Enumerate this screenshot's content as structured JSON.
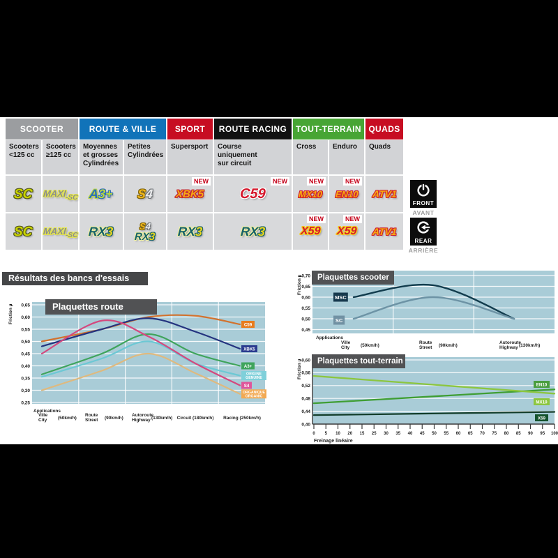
{
  "page": {
    "results_title": "Résultats des bancs d'essais"
  },
  "table": {
    "new_label": "NEW",
    "groups": [
      {
        "label": "SCOOTER",
        "color": "#9b9da0"
      },
      {
        "label": "ROUTE & VILLE",
        "color": "#1173b9"
      },
      {
        "label": "SPORT",
        "color": "#c70d22"
      },
      {
        "label": "ROUTE RACING",
        "color": "#121212"
      },
      {
        "label": "TOUT-TERRAIN",
        "color": "#47a534"
      },
      {
        "label": "QUADS",
        "color": "#c70d22"
      }
    ],
    "subheaders": [
      [
        "Scooters",
        "<125 cc"
      ],
      [
        "Scooters",
        "≥125 cc"
      ],
      [
        "Moyennes",
        "et grosses",
        "Cylindrées"
      ],
      [
        "Petites",
        "Cylindrées"
      ],
      [
        "Supersport"
      ],
      [
        "Course",
        "uniquement",
        "sur circuit"
      ],
      [
        "Cross"
      ],
      [
        "Enduro"
      ],
      [
        "Quads"
      ]
    ],
    "badges": {
      "SC": {
        "fs": 19,
        "parts": [
          {
            "t": "SC",
            "c": "#c9d300",
            "sh": "#55591f"
          }
        ]
      },
      "MAXISC": {
        "fs": 13,
        "parts": [
          {
            "t": "MAXI",
            "c": "#8a8d90",
            "sh": "#e6e74b"
          },
          {
            "t": "-SC",
            "c": "#8a8d90",
            "sh": "#e6e74b",
            "fs": 10,
            "dy": 4
          }
        ]
      },
      "A3": {
        "fs": 18,
        "parts": [
          {
            "t": "A",
            "c": "#2a6db8",
            "sh": "#b9d641"
          },
          {
            "t": "3+",
            "c": "#b9d641",
            "sh": "#2a6db8"
          }
        ]
      },
      "S4": {
        "fs": 18,
        "parts": [
          {
            "t": "S",
            "c": "#f2b719",
            "sh": "#7d6410"
          },
          {
            "t": "4",
            "c": "#e9eaeb",
            "sh": "#707478"
          }
        ]
      },
      "XBK5": {
        "fs": 15,
        "parts": [
          {
            "t": "XBK5",
            "c": "#f7a813",
            "sh": "#c22435"
          }
        ]
      },
      "C59": {
        "fs": 20,
        "parts": [
          {
            "t": "C59",
            "c": "#d5182c",
            "sh": "#ffffff"
          }
        ]
      },
      "MX10": {
        "fs": 13,
        "parts": [
          {
            "t": "MX10",
            "c": "#f7a90f",
            "sh": "#cf2130"
          }
        ]
      },
      "EN10": {
        "fs": 13,
        "parts": [
          {
            "t": "EN10",
            "c": "#f7a90f",
            "sh": "#cf2130"
          }
        ]
      },
      "ATV1": {
        "fs": 14,
        "parts": [
          {
            "t": "ATV1",
            "c": "#f7a90f",
            "sh": "#cf2130"
          }
        ]
      },
      "RX3": {
        "fs": 18,
        "parts": [
          {
            "t": "RX",
            "c": "#17616a",
            "sh": "#eef0a0"
          },
          {
            "t": "3",
            "c": "#e6d41f",
            "sh": "#17616a"
          }
        ]
      },
      "X59": {
        "fs": 16,
        "parts": [
          {
            "t": "X59",
            "c": "#d5182c",
            "sh": "#f5d31f"
          }
        ]
      },
      "S4s": {
        "fs": 13,
        "parts": [
          {
            "t": "S",
            "c": "#f2b719",
            "sh": "#7d6410"
          },
          {
            "t": "4",
            "c": "#e9eaeb",
            "sh": "#707478"
          }
        ]
      },
      "RX3s": {
        "fs": 15,
        "parts": [
          {
            "t": "RX",
            "c": "#17616a",
            "sh": "#eef0a0"
          },
          {
            "t": "3",
            "c": "#e6d41f",
            "sh": "#17616a"
          }
        ]
      }
    },
    "row_front": [
      {
        "badges": [
          "SC"
        ]
      },
      {
        "badges": [
          "MAXISC"
        ]
      },
      {
        "badges": [
          "A3"
        ]
      },
      {
        "badges": [
          "S4"
        ]
      },
      {
        "badges": [
          "XBK5"
        ],
        "new": true
      },
      {
        "badges": [
          "C59"
        ],
        "new": true
      },
      {
        "badges": [
          "MX10"
        ],
        "new": true
      },
      {
        "badges": [
          "EN10"
        ],
        "new": true
      },
      {
        "badges": [
          "ATV1"
        ]
      }
    ],
    "row_rear": [
      {
        "badges": [
          "SC"
        ]
      },
      {
        "badges": [
          "MAXISC"
        ]
      },
      {
        "badges": [
          "RX3"
        ]
      },
      {
        "badges": [
          "S4s",
          "RX3s"
        ]
      },
      {
        "badges": [
          "RX3"
        ]
      },
      {
        "badges": [
          "RX3"
        ]
      },
      {
        "badges": [
          "X59"
        ],
        "new": true
      },
      {
        "badges": [
          "X59"
        ],
        "new": true
      },
      {
        "badges": [
          "ATV1"
        ]
      }
    ],
    "front_marker": {
      "label": "FRONT",
      "sub": "AVANT"
    },
    "rear_marker": {
      "label": "REAR",
      "sub": "ARRIÈRE"
    }
  },
  "chart_data": [
    {
      "id": "route",
      "type": "line",
      "title": "Plaquettes route",
      "ylabel": "Friction µ",
      "ymin": 0.25,
      "ymax": 0.65,
      "grid": true,
      "legend_position": "right",
      "yticks": [
        "0,65",
        "0,60",
        "0,55",
        "0,50",
        "0,45",
        "0,40",
        "0,35",
        "0,30",
        "0,25"
      ],
      "xlabel_header": "Applications",
      "categories": [
        {
          "line1": "Ville",
          "line2": "City",
          "speed": "(50km/h)"
        },
        {
          "line1": "Route",
          "line2": "Street",
          "speed": "(90km/h)"
        },
        {
          "line1": "Autoroute",
          "line2": "Highway",
          "speed": "(130km/h)"
        },
        {
          "line1": "Circuit (180km/h)",
          "line2": "",
          "speed": ""
        },
        {
          "line1": "Racing (250km/h)",
          "line2": "",
          "speed": ""
        }
      ],
      "series": [
        {
          "name": "C59",
          "color": "#d2722e",
          "label_bg": "#e87c1e",
          "values": [
            0.5,
            0.55,
            0.6,
            0.605,
            0.57
          ]
        },
        {
          "name": "XBK5",
          "color": "#24337f",
          "label_bg": "#2a3b8f",
          "values": [
            0.48,
            0.55,
            0.595,
            0.54,
            0.47
          ]
        },
        {
          "name": "A3+",
          "color": "#3fa45c",
          "label_bg": "#3fa45c",
          "values": [
            0.365,
            0.45,
            0.53,
            0.45,
            0.4
          ]
        },
        {
          "name": "ORIGINE\nGENUINE",
          "color": "#6cc8d4",
          "label_bg": "#7fd0da",
          "values": [
            0.355,
            0.43,
            0.5,
            0.41,
            0.36
          ]
        },
        {
          "name": "S4",
          "color": "#d4487e",
          "label_bg": "#e0559a",
          "values": [
            0.45,
            0.585,
            0.52,
            0.41,
            0.32
          ]
        },
        {
          "name": "ORGANIQUE\nORGANIC",
          "color": "#dfb97e",
          "label_bg": "#f2a952",
          "values": [
            0.3,
            0.38,
            0.45,
            0.37,
            0.285
          ]
        }
      ]
    },
    {
      "id": "scooter",
      "type": "line",
      "title": "Plaquettes scooter",
      "ylabel": "Friction µ",
      "ymin": 0.45,
      "ymax": 0.7,
      "grid": true,
      "legend_position": "left",
      "yticks": [
        "0,70",
        "0,65",
        "0,60",
        "0,55",
        "0,50",
        "0,45"
      ],
      "xlabel_header": "Applications",
      "categories": [
        {
          "line1": "Ville",
          "line2": "City",
          "speed": "(50km/h)"
        },
        {
          "line1": "Route",
          "line2": "Street",
          "speed": "(90km/h)"
        },
        {
          "line1": "Autoroute",
          "line2": "Highway",
          "speed": "(130km/h)"
        }
      ],
      "series": [
        {
          "name": "MSC",
          "color": "#123c4d",
          "label_bg": "#16394d",
          "values": [
            0.6,
            0.655,
            0.5
          ]
        },
        {
          "name": "SC",
          "color": "#6d93a5",
          "label_bg": "#7191a3",
          "values": [
            0.5,
            0.6,
            0.5
          ]
        }
      ]
    },
    {
      "id": "tt",
      "type": "line",
      "title": "Plaquettes tout-terrain",
      "ylabel": "Friction µ",
      "ymin": 0.4,
      "ymax": 0.6,
      "grid": true,
      "legend_position": "right",
      "yticks": [
        "0,60",
        "0,56",
        "0,52",
        "0,48",
        "0,44",
        "0,40"
      ],
      "xticks": [
        "0",
        "5",
        "10",
        "20",
        "15",
        "25",
        "30",
        "35",
        "40",
        "45",
        "50",
        "55",
        "60",
        "65",
        "70",
        "75",
        "80",
        "85",
        "90",
        "95",
        "100"
      ],
      "xlabel": "Freinage linéaire",
      "series": [
        {
          "name": "EN10",
          "color": "#3f9e33",
          "label_bg": "#4a9e3f",
          "values": [
            0.465,
            0.508
          ]
        },
        {
          "name": "MX10",
          "color": "#8cc63f",
          "label_bg": "#8cc63f",
          "values": [
            0.55,
            0.495
          ]
        },
        {
          "name": "X59",
          "color": "#123d2a",
          "label_bg": "#14532d",
          "values": [
            0.428,
            0.438
          ]
        }
      ]
    }
  ]
}
